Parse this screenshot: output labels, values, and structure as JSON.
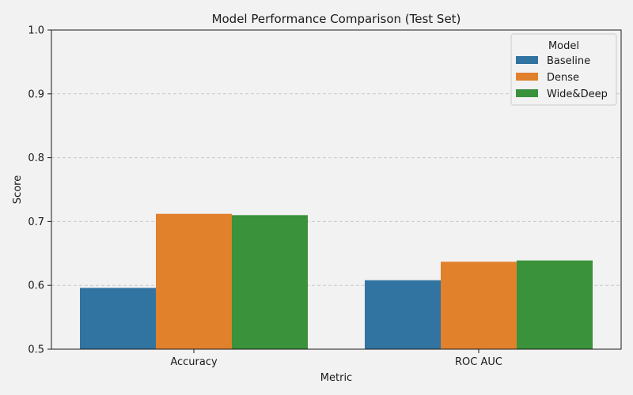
{
  "chart_data": {
    "type": "bar",
    "title": "Model Performance Comparison (Test Set)",
    "xlabel": "Metric",
    "ylabel": "Score",
    "ylim": [
      0.5,
      1.0
    ],
    "yticks": [
      "0.5",
      "0.6",
      "0.7",
      "0.8",
      "0.9",
      "1.0"
    ],
    "categories": [
      "Accuracy",
      "ROC AUC"
    ],
    "series": [
      {
        "name": "Baseline",
        "color": "#3274a1",
        "values": [
          0.596,
          0.608
        ]
      },
      {
        "name": "Dense",
        "color": "#e1812c",
        "values": [
          0.712,
          0.637
        ]
      },
      {
        "name": "Wide&Deep",
        "color": "#3a923a",
        "values": [
          0.71,
          0.639
        ]
      }
    ],
    "grid": "y-dashed",
    "legend": {
      "title": "Model",
      "position": "top-right"
    }
  }
}
